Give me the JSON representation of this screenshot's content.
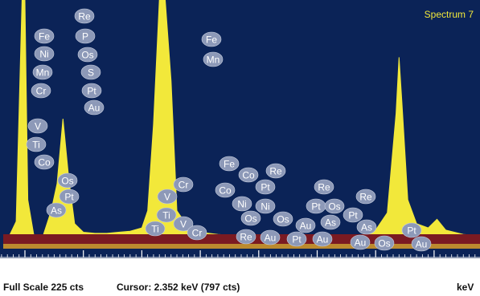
{
  "window": {
    "spectrum_label": "Spectrum 7"
  },
  "status": {
    "full_scale": "Full Scale 225 cts",
    "cursor": "Cursor: 2.352 keV (797 cts)",
    "unit": "keV"
  },
  "colors": {
    "background": "#0b2357",
    "spectrum": "#f2e83a",
    "marker_band": "#7a1a22",
    "label_bubble": "#8d99b8",
    "label_text": "#ffffff"
  },
  "chart_data": {
    "type": "area",
    "title": "Spectrum 7",
    "xlabel": "keV",
    "ylabel": "",
    "xlim": [
      -0.5,
      15.2
    ],
    "ylim": [
      0,
      225
    ],
    "x_ticks": [
      0,
      2,
      4,
      6,
      8,
      10,
      12,
      14
    ],
    "series": [
      {
        "x": [
          -0.3,
          -0.15,
          -0.05,
          0.0,
          0.05,
          0.15,
          0.3,
          0.45,
          0.55,
          0.65,
          0.75,
          0.85,
          1.0,
          1.2,
          1.4,
          1.6,
          1.8,
          2.0,
          2.1,
          2.2,
          2.3,
          2.35,
          2.4,
          2.5,
          2.6,
          2.8,
          3.0,
          3.3,
          3.6,
          4.0,
          4.5,
          5.0,
          5.5,
          5.8,
          6.0,
          6.2,
          6.35,
          6.4,
          6.45,
          6.55,
          6.7,
          6.9,
          7.05,
          7.2,
          7.5,
          8.0,
          9.0,
          10.0,
          11.0,
          12.0,
          13.0,
          14.0,
          15.0
        ],
        "values": [
          3,
          20,
          225,
          225,
          40,
          8,
          5,
          30,
          55,
          115,
          60,
          18,
          10,
          9,
          9,
          10,
          11,
          14,
          30,
          110,
          225,
          225,
          225,
          150,
          30,
          14,
          10,
          8,
          7,
          6,
          6,
          5,
          6,
          8,
          12,
          28,
          120,
          172,
          130,
          40,
          18,
          14,
          22,
          12,
          8,
          6,
          5,
          4,
          4,
          3,
          3,
          3,
          2
        ]
      }
    ],
    "peak_labels": [
      {
        "energy": 2.3,
        "elements": [
          "Re",
          "P",
          "Os",
          "S",
          "Pt",
          "Au"
        ]
      },
      {
        "energy": 0.65,
        "elements": [
          "Fe",
          "Ni",
          "Mn",
          "Cr",
          "V",
          "Ti",
          "Co"
        ]
      },
      {
        "energy": 6.4,
        "elements": [
          "Fe",
          "Mn"
        ]
      },
      {
        "energy": 1.7,
        "elements": [
          "Os",
          "Pt",
          "As"
        ]
      },
      {
        "energy": 5.0,
        "elements": [
          "Cr",
          "V",
          "Ti",
          "V"
        ]
      },
      {
        "energy": 7.5,
        "elements": [
          "Fe",
          "Co",
          "Re",
          "Co",
          "Pt",
          "Ni",
          "Ni",
          "Os"
        ]
      },
      {
        "energy": 9.0,
        "elements": [
          "Os",
          "Au"
        ]
      },
      {
        "energy": 10.5,
        "elements": [
          "Re",
          "Pt",
          "Os",
          "Re",
          "As",
          "Pt",
          "As"
        ]
      },
      {
        "energy": 13.4,
        "elements": [
          "Pt",
          "Au"
        ]
      }
    ],
    "marker_band_labels": [
      "Ti",
      "Cr",
      "Re",
      "Au",
      "Pt",
      "Au",
      "Au",
      "Os"
    ],
    "grid": false,
    "legend": "none"
  }
}
